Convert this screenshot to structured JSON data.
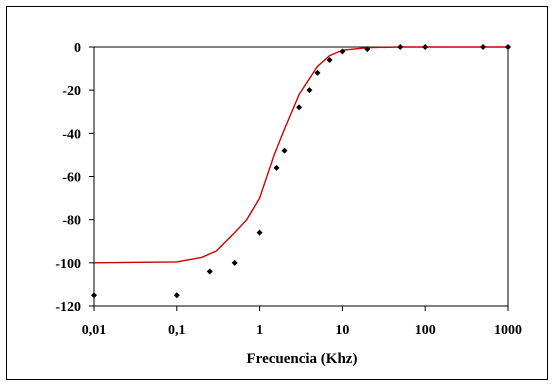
{
  "chart_data": {
    "type": "scatter",
    "title": "",
    "xlabel": "Frecuencia (Khz)",
    "ylabel": "",
    "x_scale": "log",
    "xlim": [
      0.01,
      1000
    ],
    "ylim": [
      -120,
      0
    ],
    "x_ticks": [
      0.01,
      0.1,
      1,
      10,
      100,
      1000
    ],
    "x_tick_labels": [
      "0,01",
      "0,1",
      "1",
      "10",
      "100",
      "1000"
    ],
    "y_ticks": [
      0,
      -20,
      -40,
      -60,
      -80,
      -100,
      -120
    ],
    "y_tick_labels": [
      "0",
      "-20",
      "-40",
      "-60",
      "-80",
      "-100",
      "-120"
    ],
    "grid": false,
    "legend": "none",
    "series": [
      {
        "type": "scatter",
        "color": "#000000",
        "marker": "diamond",
        "points": [
          {
            "x": 0.01,
            "y": -115
          },
          {
            "x": 0.1,
            "y": -115
          },
          {
            "x": 0.25,
            "y": -104
          },
          {
            "x": 0.5,
            "y": -100
          },
          {
            "x": 1,
            "y": -86
          },
          {
            "x": 1.6,
            "y": -56
          },
          {
            "x": 2,
            "y": -48
          },
          {
            "x": 3,
            "y": -28
          },
          {
            "x": 4,
            "y": -20
          },
          {
            "x": 5,
            "y": -12
          },
          {
            "x": 7,
            "y": -6
          },
          {
            "x": 10,
            "y": -2
          },
          {
            "x": 20,
            "y": -1
          },
          {
            "x": 50,
            "y": 0
          },
          {
            "x": 100,
            "y": 0
          },
          {
            "x": 500,
            "y": 0
          },
          {
            "x": 1000,
            "y": 0
          }
        ]
      },
      {
        "type": "line",
        "color": "#cc0000",
        "points": [
          {
            "x": 0.01,
            "y": -100
          },
          {
            "x": 0.1,
            "y": -99.6
          },
          {
            "x": 0.2,
            "y": -97.5
          },
          {
            "x": 0.3,
            "y": -94.5
          },
          {
            "x": 0.5,
            "y": -86
          },
          {
            "x": 0.7,
            "y": -80
          },
          {
            "x": 1,
            "y": -70
          },
          {
            "x": 1.5,
            "y": -50
          },
          {
            "x": 2,
            "y": -38
          },
          {
            "x": 3,
            "y": -22
          },
          {
            "x": 5,
            "y": -9
          },
          {
            "x": 7,
            "y": -4
          },
          {
            "x": 10,
            "y": -1.5
          },
          {
            "x": 20,
            "y": -0.3
          },
          {
            "x": 50,
            "y": 0
          },
          {
            "x": 100,
            "y": 0
          },
          {
            "x": 1000,
            "y": 0
          }
        ]
      }
    ]
  }
}
